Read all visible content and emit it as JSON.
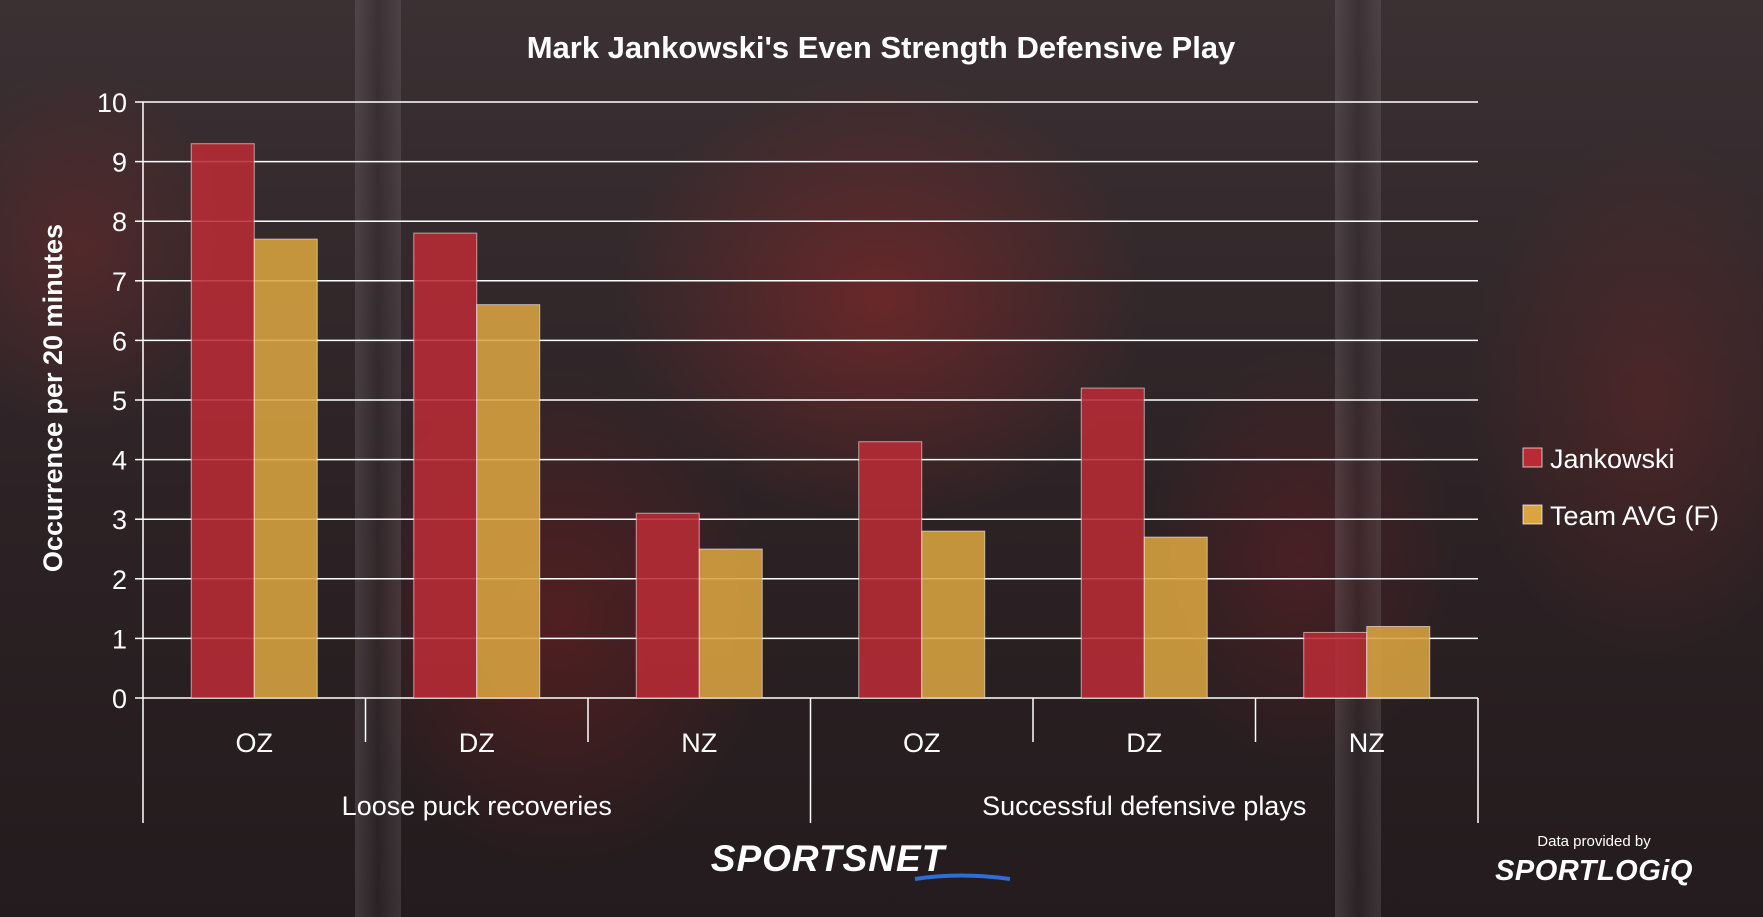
{
  "colors": {
    "jankowski": "#b82b35",
    "team_avg": "#d9a441",
    "text": "#ffffff"
  },
  "chart_data": {
    "type": "bar",
    "title": "Mark Jankowski's Even Strength Defensive Play",
    "ylabel": "Occurrence per 20 minutes",
    "xlabel": "",
    "ylim": [
      0,
      10
    ],
    "yticks": [
      "0",
      "1",
      "2",
      "3",
      "4",
      "5",
      "6",
      "7",
      "8",
      "9",
      "10"
    ],
    "grid": true,
    "legend_position": "right",
    "groups": [
      {
        "label": "Loose puck recoveries",
        "categories": [
          "OZ",
          "DZ",
          "NZ"
        ]
      },
      {
        "label": "Successful defensive plays",
        "categories": [
          "OZ",
          "DZ",
          "NZ"
        ]
      }
    ],
    "categories": [
      "OZ",
      "DZ",
      "NZ",
      "OZ",
      "DZ",
      "NZ"
    ],
    "series": [
      {
        "name": "Jankowski",
        "values": [
          9.3,
          7.8,
          3.1,
          4.3,
          5.2,
          1.1
        ]
      },
      {
        "name": "Team AVG (F)",
        "values": [
          7.7,
          6.6,
          2.5,
          2.8,
          2.7,
          1.2
        ]
      }
    ]
  },
  "branding": {
    "sportsnet": "SPORTSNET",
    "data_provided_by": "Data provided by",
    "sportlogiq": "SPORTLOGiQ"
  }
}
